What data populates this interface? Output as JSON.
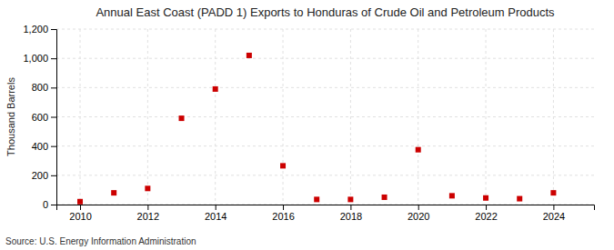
{
  "chart_data": {
    "type": "scatter",
    "title": "Annual East Coast (PADD 1) Exports to Honduras of Crude Oil and Petroleum Products",
    "y_label": "Thousand Barrels",
    "source": "Source: U.S. Energy Information Administration",
    "x": [
      2010,
      2011,
      2012,
      2013,
      2014,
      2015,
      2016,
      2017,
      2018,
      2019,
      2020,
      2021,
      2022,
      2023,
      2024
    ],
    "values": [
      20,
      80,
      110,
      590,
      790,
      1020,
      265,
      35,
      35,
      50,
      375,
      60,
      45,
      40,
      80
    ],
    "color": "#cc0000",
    "marker": "square",
    "xlim": [
      2009.3,
      2025.2
    ],
    "xticks": [
      2010,
      2012,
      2014,
      2016,
      2018,
      2020,
      2022,
      2024
    ],
    "ylim": [
      0,
      1200
    ],
    "yticks": [
      0,
      200,
      400,
      600,
      800,
      {
        "value": 1000,
        "label": "1,000"
      },
      {
        "value": 1200,
        "label": "1,200"
      }
    ],
    "grid": true
  }
}
